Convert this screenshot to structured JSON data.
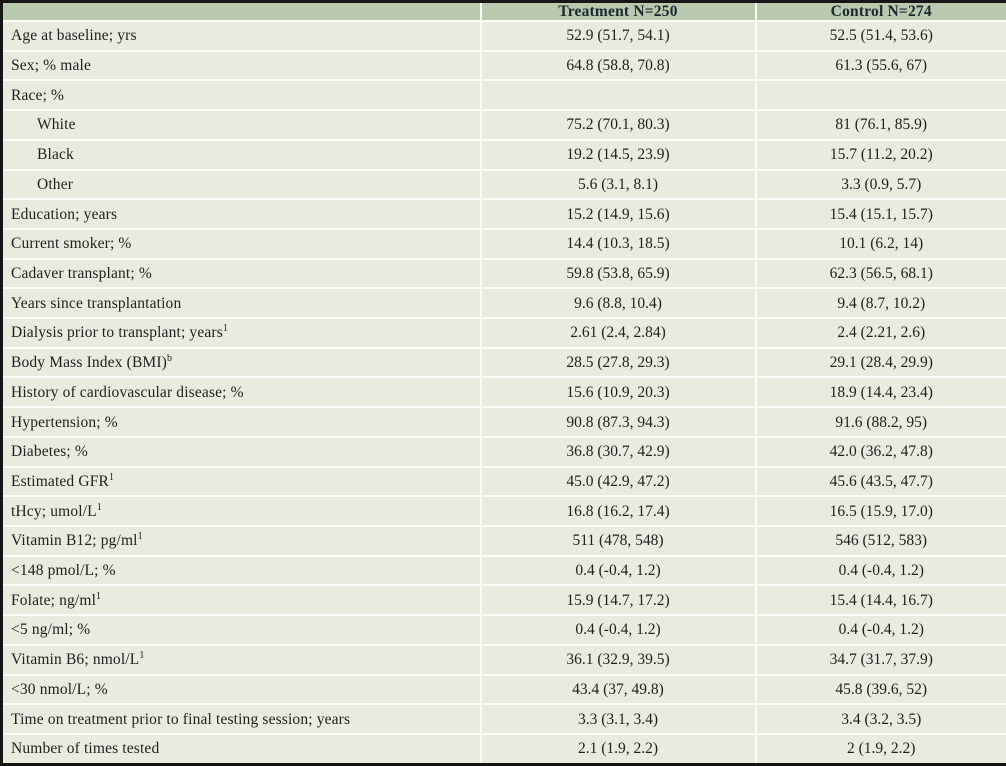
{
  "table": {
    "columns": [
      {
        "label": ""
      },
      {
        "label": "Treatment N=250"
      },
      {
        "label": "Control N=274"
      }
    ],
    "rows": [
      {
        "label": "Age at baseline; yrs",
        "sup": "",
        "indent": false,
        "treatment": "52.9 (51.7, 54.1)",
        "control": "52.5 (51.4, 53.6)"
      },
      {
        "label": "Sex; % male",
        "sup": "",
        "indent": false,
        "treatment": "64.8 (58.8, 70.8)",
        "control": "61.3 (55.6, 67)"
      },
      {
        "label": "Race; %",
        "sup": "",
        "indent": false,
        "treatment": "",
        "control": ""
      },
      {
        "label": "White",
        "sup": "",
        "indent": true,
        "treatment": "75.2 (70.1, 80.3)",
        "control": "81 (76.1, 85.9)"
      },
      {
        "label": "Black",
        "sup": "",
        "indent": true,
        "treatment": "19.2 (14.5, 23.9)",
        "control": "15.7 (11.2, 20.2)"
      },
      {
        "label": "Other",
        "sup": "",
        "indent": true,
        "treatment": "5.6 (3.1, 8.1)",
        "control": "3.3 (0.9, 5.7)"
      },
      {
        "label": "Education; years",
        "sup": "",
        "indent": false,
        "treatment": "15.2 (14.9, 15.6)",
        "control": "15.4 (15.1, 15.7)"
      },
      {
        "label": "Current smoker; %",
        "sup": "",
        "indent": false,
        "treatment": "14.4 (10.3, 18.5)",
        "control": "10.1 (6.2, 14)"
      },
      {
        "label": "Cadaver transplant; %",
        "sup": "",
        "indent": false,
        "treatment": "59.8 (53.8, 65.9)",
        "control": "62.3 (56.5, 68.1)"
      },
      {
        "label": "Years since transplantation",
        "sup": "",
        "indent": false,
        "treatment": "9.6 (8.8, 10.4)",
        "control": "9.4 (8.7, 10.2)"
      },
      {
        "label": "Dialysis prior to transplant; years",
        "sup": "1",
        "indent": false,
        "treatment": "2.61 (2.4, 2.84)",
        "control": "2.4 (2.21, 2.6)"
      },
      {
        "label": "Body Mass Index (BMI)",
        "sup": "b",
        "indent": false,
        "treatment": "28.5 (27.8, 29.3)",
        "control": "29.1 (28.4, 29.9)"
      },
      {
        "label": "History of cardiovascular disease; %",
        "sup": "",
        "indent": false,
        "treatment": "15.6 (10.9, 20.3)",
        "control": "18.9 (14.4, 23.4)"
      },
      {
        "label": "Hypertension; %",
        "sup": "",
        "indent": false,
        "treatment": "90.8 (87.3, 94.3)",
        "control": "91.6 (88.2, 95)"
      },
      {
        "label": "Diabetes; %",
        "sup": "",
        "indent": false,
        "treatment": "36.8 (30.7, 42.9)",
        "control": "42.0 (36.2, 47.8)"
      },
      {
        "label": "Estimated GFR",
        "sup": "1",
        "indent": false,
        "treatment": "45.0 (42.9, 47.2)",
        "control": "45.6 (43.5, 47.7)"
      },
      {
        "label": "tHcy; umol/L",
        "sup": "1",
        "indent": false,
        "treatment": "16.8 (16.2, 17.4)",
        "control": "16.5 (15.9, 17.0)"
      },
      {
        "label": "Vitamin B12; pg/ml",
        "sup": "1",
        "indent": false,
        "treatment": "511 (478, 548)",
        "control": "546 (512, 583)"
      },
      {
        "label": "<148 pmol/L; %",
        "sup": "",
        "indent": false,
        "treatment": "0.4 (-0.4, 1.2)",
        "control": "0.4 (-0.4, 1.2)"
      },
      {
        "label": "Folate; ng/ml",
        "sup": "1",
        "indent": false,
        "treatment": "15.9 (14.7, 17.2)",
        "control": "15.4 (14.4, 16.7)"
      },
      {
        "label": "<5 ng/ml; %",
        "sup": "",
        "indent": false,
        "treatment": "0.4 (-0.4, 1.2)",
        "control": "0.4 (-0.4, 1.2)"
      },
      {
        "label": "Vitamin B6; nmol/L",
        "sup": "1",
        "indent": false,
        "treatment": "36.1 (32.9, 39.5)",
        "control": "34.7 (31.7, 37.9)"
      },
      {
        "label": "<30 nmol/L; %",
        "sup": "",
        "indent": false,
        "treatment": "43.4 (37, 49.8)",
        "control": "45.8 (39.6, 52)"
      },
      {
        "label": "Time on treatment prior to final testing session; years",
        "sup": "",
        "indent": false,
        "treatment": "3.3 (3.1, 3.4)",
        "control": "3.4 (3.2, 3.5)"
      },
      {
        "label": "Number of times tested",
        "sup": "",
        "indent": false,
        "treatment": "2.1 (1.9, 2.2)",
        "control": "2 (1.9, 2.2)"
      }
    ],
    "colors": {
      "header_background": "#b8c9ad",
      "row_background": "#e8ecdf",
      "separator": "#fbfbf7",
      "outer_border": "#161616",
      "header_text": "#1b2832",
      "body_text": "#1f1f1f"
    }
  }
}
